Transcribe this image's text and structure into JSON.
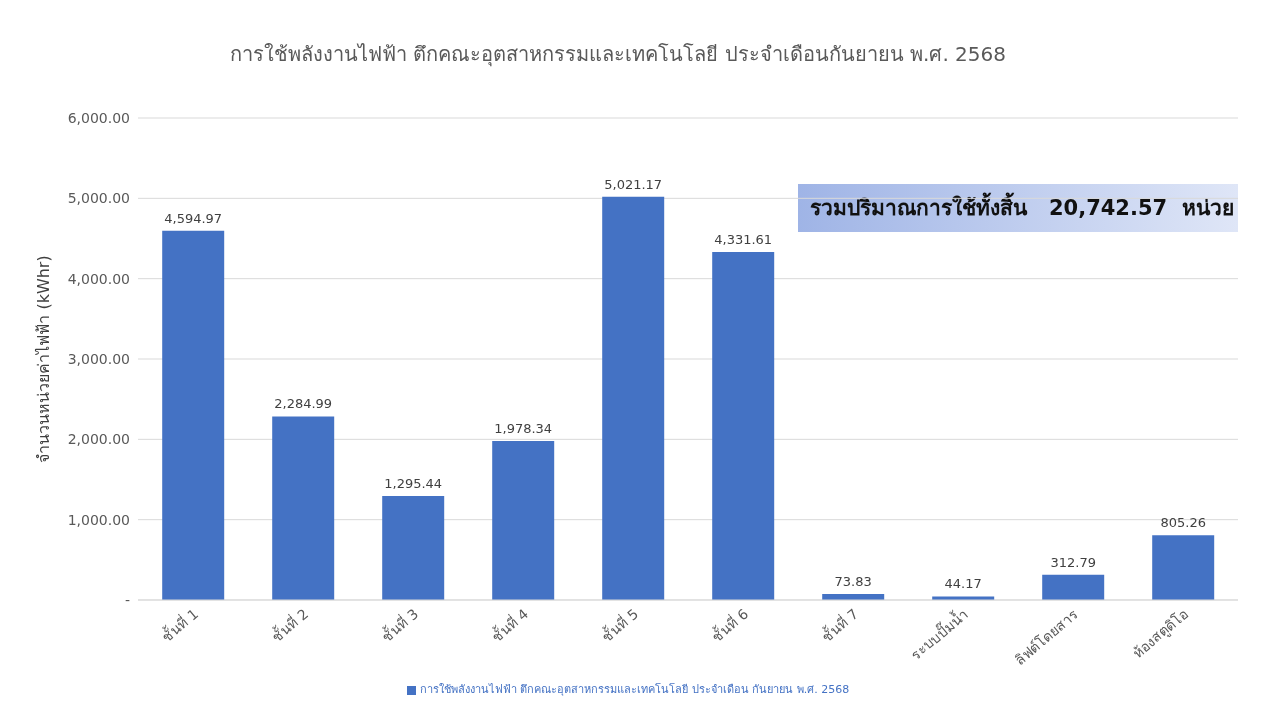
{
  "chart_data": {
    "type": "bar",
    "title": "การใช้พลังงานไฟฟ้า ตึกคณะอุตสาหกรรมและเทคโนโลยี ประจำเดือนกันยายน พ.ศ. 2568",
    "ylabel": "จำนวนหน่วยค่าไฟฟ้า (kWhr)",
    "categories": [
      "ชั้นที่ 1",
      "ชั้นที่ 2",
      "ชั้นที่ 3",
      "ชั้นที่ 4",
      "ชั้นที่ 5",
      "ชั้นที่ 6",
      "ชั้นที่ 7",
      "ระบบปั๊มน้ำ",
      "ลิฟต์โดยสาร",
      "ห้องสตูดิโอ"
    ],
    "series": [
      {
        "name": "การใช้พลังงานไฟฟ้า ตึกคณะอุตสาหกรรมและเทคโนโลยี ประจำเดือน กันยายน พ.ศ. 2568",
        "color": "#4472c4",
        "values": [
          4594.97,
          2284.99,
          1295.44,
          1978.34,
          5021.17,
          4331.61,
          73.83,
          44.17,
          312.79,
          805.26
        ],
        "value_labels": [
          "4,594.97",
          "2,284.99",
          "1,295.44",
          "1,978.34",
          "5,021.17",
          "4,331.61",
          "73.83",
          "44.17",
          "312.79",
          "805.26"
        ]
      }
    ],
    "ylim": [
      0,
      6000
    ],
    "yticks": [
      {
        "value": 0,
        "label": "-"
      },
      {
        "value": 1000,
        "label": "1,000.00"
      },
      {
        "value": 2000,
        "label": "2,000.00"
      },
      {
        "value": 3000,
        "label": "3,000.00"
      },
      {
        "value": 4000,
        "label": "4,000.00"
      },
      {
        "value": 5000,
        "label": "5,000.00"
      },
      {
        "value": 6000,
        "label": "6,000.00"
      }
    ],
    "grid": "y",
    "legend": "bottom",
    "annotations": [
      "รวมปริมาณการใช้ทั้งสิ้น   20,742.57  หน่วย"
    ]
  }
}
